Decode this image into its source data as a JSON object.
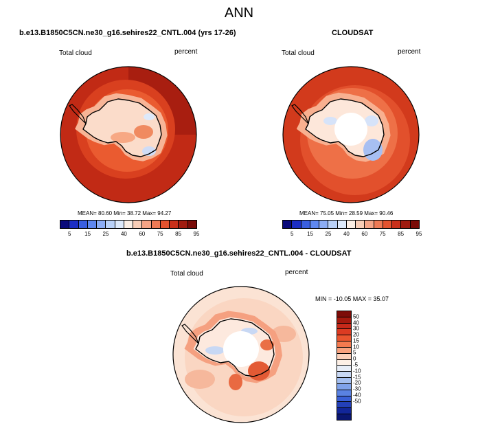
{
  "title": "ANN",
  "panels": [
    {
      "title": "b.e13.B1850C5CN.ne30_g16.sehires22_CNTL.004 (yrs 17-26)",
      "variable": "Total cloud",
      "units": "percent",
      "stats": "MEAN=  80.60   Min=  38.72   Max=  94.27",
      "map": "model"
    },
    {
      "title": "CLOUDSAT",
      "variable": "Total cloud",
      "units": "percent",
      "stats": "MEAN=  75.05   Min=  28.59   Max=  90.46",
      "map": "obs"
    },
    {
      "title": "b.e13.B1850C5CN.ne30_g16.sehires22_CNTL.004 - CLOUDSAT",
      "variable": "Total cloud",
      "units": "percent",
      "stats": "MIN = -10.05 MAX =  35.07",
      "map": "diff"
    }
  ],
  "abs_colorbar": {
    "colors": [
      "#0a0a7a",
      "#1c2ec4",
      "#3a5fe0",
      "#5f88f0",
      "#8cadf5",
      "#b9d1f8",
      "#dde9fa",
      "#fbeee4",
      "#f8cdb6",
      "#f5a486",
      "#ee7a55",
      "#e3532f",
      "#c9301a",
      "#a01c10",
      "#7a0c08"
    ],
    "labels": [
      "5",
      "15",
      "25",
      "40",
      "60",
      "75",
      "85",
      "95"
    ]
  },
  "diff_colorbar": {
    "colors": [
      "#7d0c08",
      "#a5190e",
      "#c6291a",
      "#dc3b22",
      "#ea552f",
      "#f47a4f",
      "#f8a27e",
      "#fbd1bb",
      "#fdf0e6",
      "#e8eef8",
      "#c8d8f4",
      "#a4bff0",
      "#7fa2ea",
      "#5a82e2",
      "#3a60d6",
      "#2340b8",
      "#122699",
      "#0a1670"
    ],
    "labels": [
      "50",
      "40",
      "30",
      "20",
      "15",
      "10",
      "5",
      "0",
      "-5",
      "-10",
      "-15",
      "-20",
      "-30",
      "-40",
      "-50"
    ]
  }
}
